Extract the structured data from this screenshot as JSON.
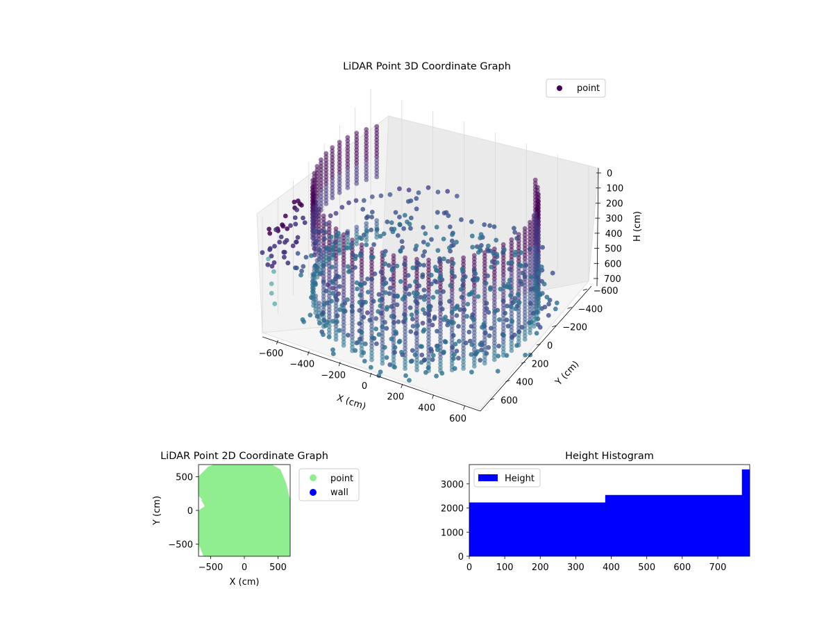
{
  "chart_data": [
    {
      "type": "scatter",
      "projection": "3d",
      "title": "LiDAR Point 3D Coordinate Graph",
      "xlabel": "X (cm)",
      "ylabel": "Y (cm)",
      "zlabel": "H (cm)",
      "xticks": [
        "−600",
        "−400",
        "−200",
        "0",
        "200",
        "400",
        "600"
      ],
      "yticks": [
        "600",
        "400",
        "200",
        "0",
        "−200",
        "−400",
        "−600"
      ],
      "zticks": [
        "0",
        "100",
        "200",
        "300",
        "400",
        "500",
        "600",
        "700"
      ],
      "xlim": [
        -700,
        700
      ],
      "ylim": [
        -700,
        700
      ],
      "zlim": [
        0,
        760
      ],
      "z_axis_inverted": true,
      "legend": {
        "entries": [
          "point"
        ],
        "location": "upper right"
      },
      "series": [
        {
          "name": "point",
          "color": "#440154",
          "colormap": "viridis",
          "description_structure": "cylindrical wall of radius ~650 cm spanning 0-760 cm height, scattered floor/ceiling returns",
          "radius": 650,
          "height_range": [
            0,
            760
          ]
        }
      ]
    },
    {
      "type": "scatter",
      "title": "LiDAR Point 2D Coordinate Graph",
      "xlabel": "X (cm)",
      "ylabel": "Y (cm)",
      "xticks": [
        "−500",
        "0",
        "500"
      ],
      "yticks": [
        "500",
        "0",
        "−500"
      ],
      "xlim": [
        -680,
        680
      ],
      "ylim": [
        -680,
        680
      ],
      "legend": {
        "entries": [
          "point",
          "wall"
        ],
        "location": "outside upper right"
      },
      "series": [
        {
          "name": "point",
          "color": "#90ee90",
          "shape": "filled disc of radius ~660 cm with small notch on left"
        },
        {
          "name": "wall",
          "color": "#0000ff",
          "values": []
        }
      ]
    },
    {
      "type": "bar",
      "title": "Height Histogram",
      "legend": {
        "entries": [
          "Height"
        ],
        "location": "upper left"
      },
      "xticks": [
        "0",
        "100",
        "200",
        "300",
        "400",
        "500",
        "600",
        "700"
      ],
      "yticks": [
        "0",
        "1000",
        "2000",
        "3000"
      ],
      "xlim": [
        0,
        790
      ],
      "ylim": [
        0,
        3800
      ],
      "series": [
        {
          "name": "Height",
          "color": "#0000ff",
          "bins": [
            {
              "x0": 0,
              "x1": 383,
              "count": 2230
            },
            {
              "x0": 383,
              "x1": 768,
              "count": 2540
            },
            {
              "x0": 768,
              "x1": 790,
              "count": 3600
            }
          ]
        }
      ]
    }
  ]
}
